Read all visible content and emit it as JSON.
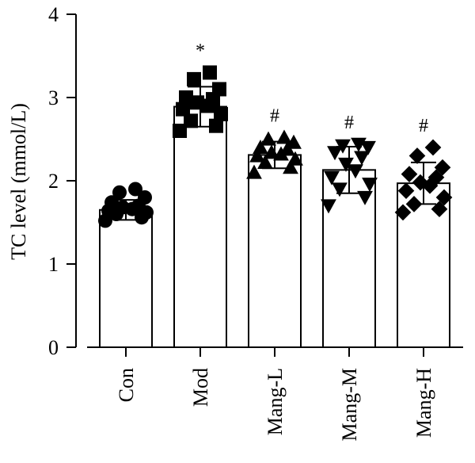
{
  "chart_data": {
    "type": "bar",
    "ylabel": "TC level (mmol/L)",
    "ylim": [
      0,
      4
    ],
    "yticks": [
      0,
      1,
      2,
      3,
      4
    ],
    "categories": [
      "Con",
      "Mod",
      "Mang-L",
      "Mang-M",
      "Mang-H"
    ],
    "values": [
      1.65,
      2.89,
      2.31,
      2.13,
      1.97
    ],
    "errors": [
      0.12,
      0.24,
      0.16,
      0.28,
      0.25
    ],
    "annotations": [
      "",
      "*",
      "#",
      "#",
      "#"
    ],
    "markers": [
      "circle",
      "square",
      "triangle-up",
      "triangle-down",
      "diamond"
    ],
    "points": [
      [
        1.52,
        1.56,
        1.6,
        1.62,
        1.64,
        1.66,
        1.68,
        1.7,
        1.74,
        1.8,
        1.86,
        1.9
      ],
      [
        2.6,
        2.66,
        2.72,
        2.8,
        2.86,
        2.9,
        2.94,
        2.98,
        3.0,
        3.1,
        3.22,
        3.3
      ],
      [
        2.1,
        2.16,
        2.22,
        2.26,
        2.3,
        2.32,
        2.34,
        2.38,
        2.4,
        2.46,
        2.5,
        2.52
      ],
      [
        1.7,
        1.8,
        1.9,
        1.96,
        2.04,
        2.12,
        2.2,
        2.28,
        2.34,
        2.4,
        2.42,
        2.44
      ],
      [
        1.62,
        1.66,
        1.72,
        1.8,
        1.88,
        1.94,
        1.98,
        2.04,
        2.08,
        2.16,
        2.3,
        2.4
      ]
    ],
    "grid": false,
    "legend": "none"
  }
}
